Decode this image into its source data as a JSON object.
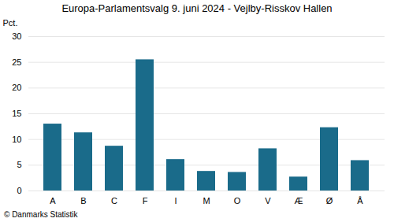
{
  "chart_data": {
    "type": "bar",
    "title": "Europa-Parlamentsvalg 9. juni 2024 - Vejlby-Risskov Hallen",
    "categories": [
      "A",
      "B",
      "C",
      "F",
      "I",
      "M",
      "O",
      "V",
      "Æ",
      "Ø",
      "Å"
    ],
    "values": [
      13.0,
      11.3,
      8.7,
      25.5,
      6.1,
      3.8,
      3.6,
      8.2,
      2.7,
      12.3,
      5.9
    ],
    "color": "#1a6b8a",
    "ylabel": "Pct.",
    "ylim": [
      0,
      30
    ],
    "yticks": [
      0,
      5,
      10,
      15,
      20,
      25,
      30
    ],
    "grid": true,
    "caption": "© Danmarks Statistik"
  }
}
